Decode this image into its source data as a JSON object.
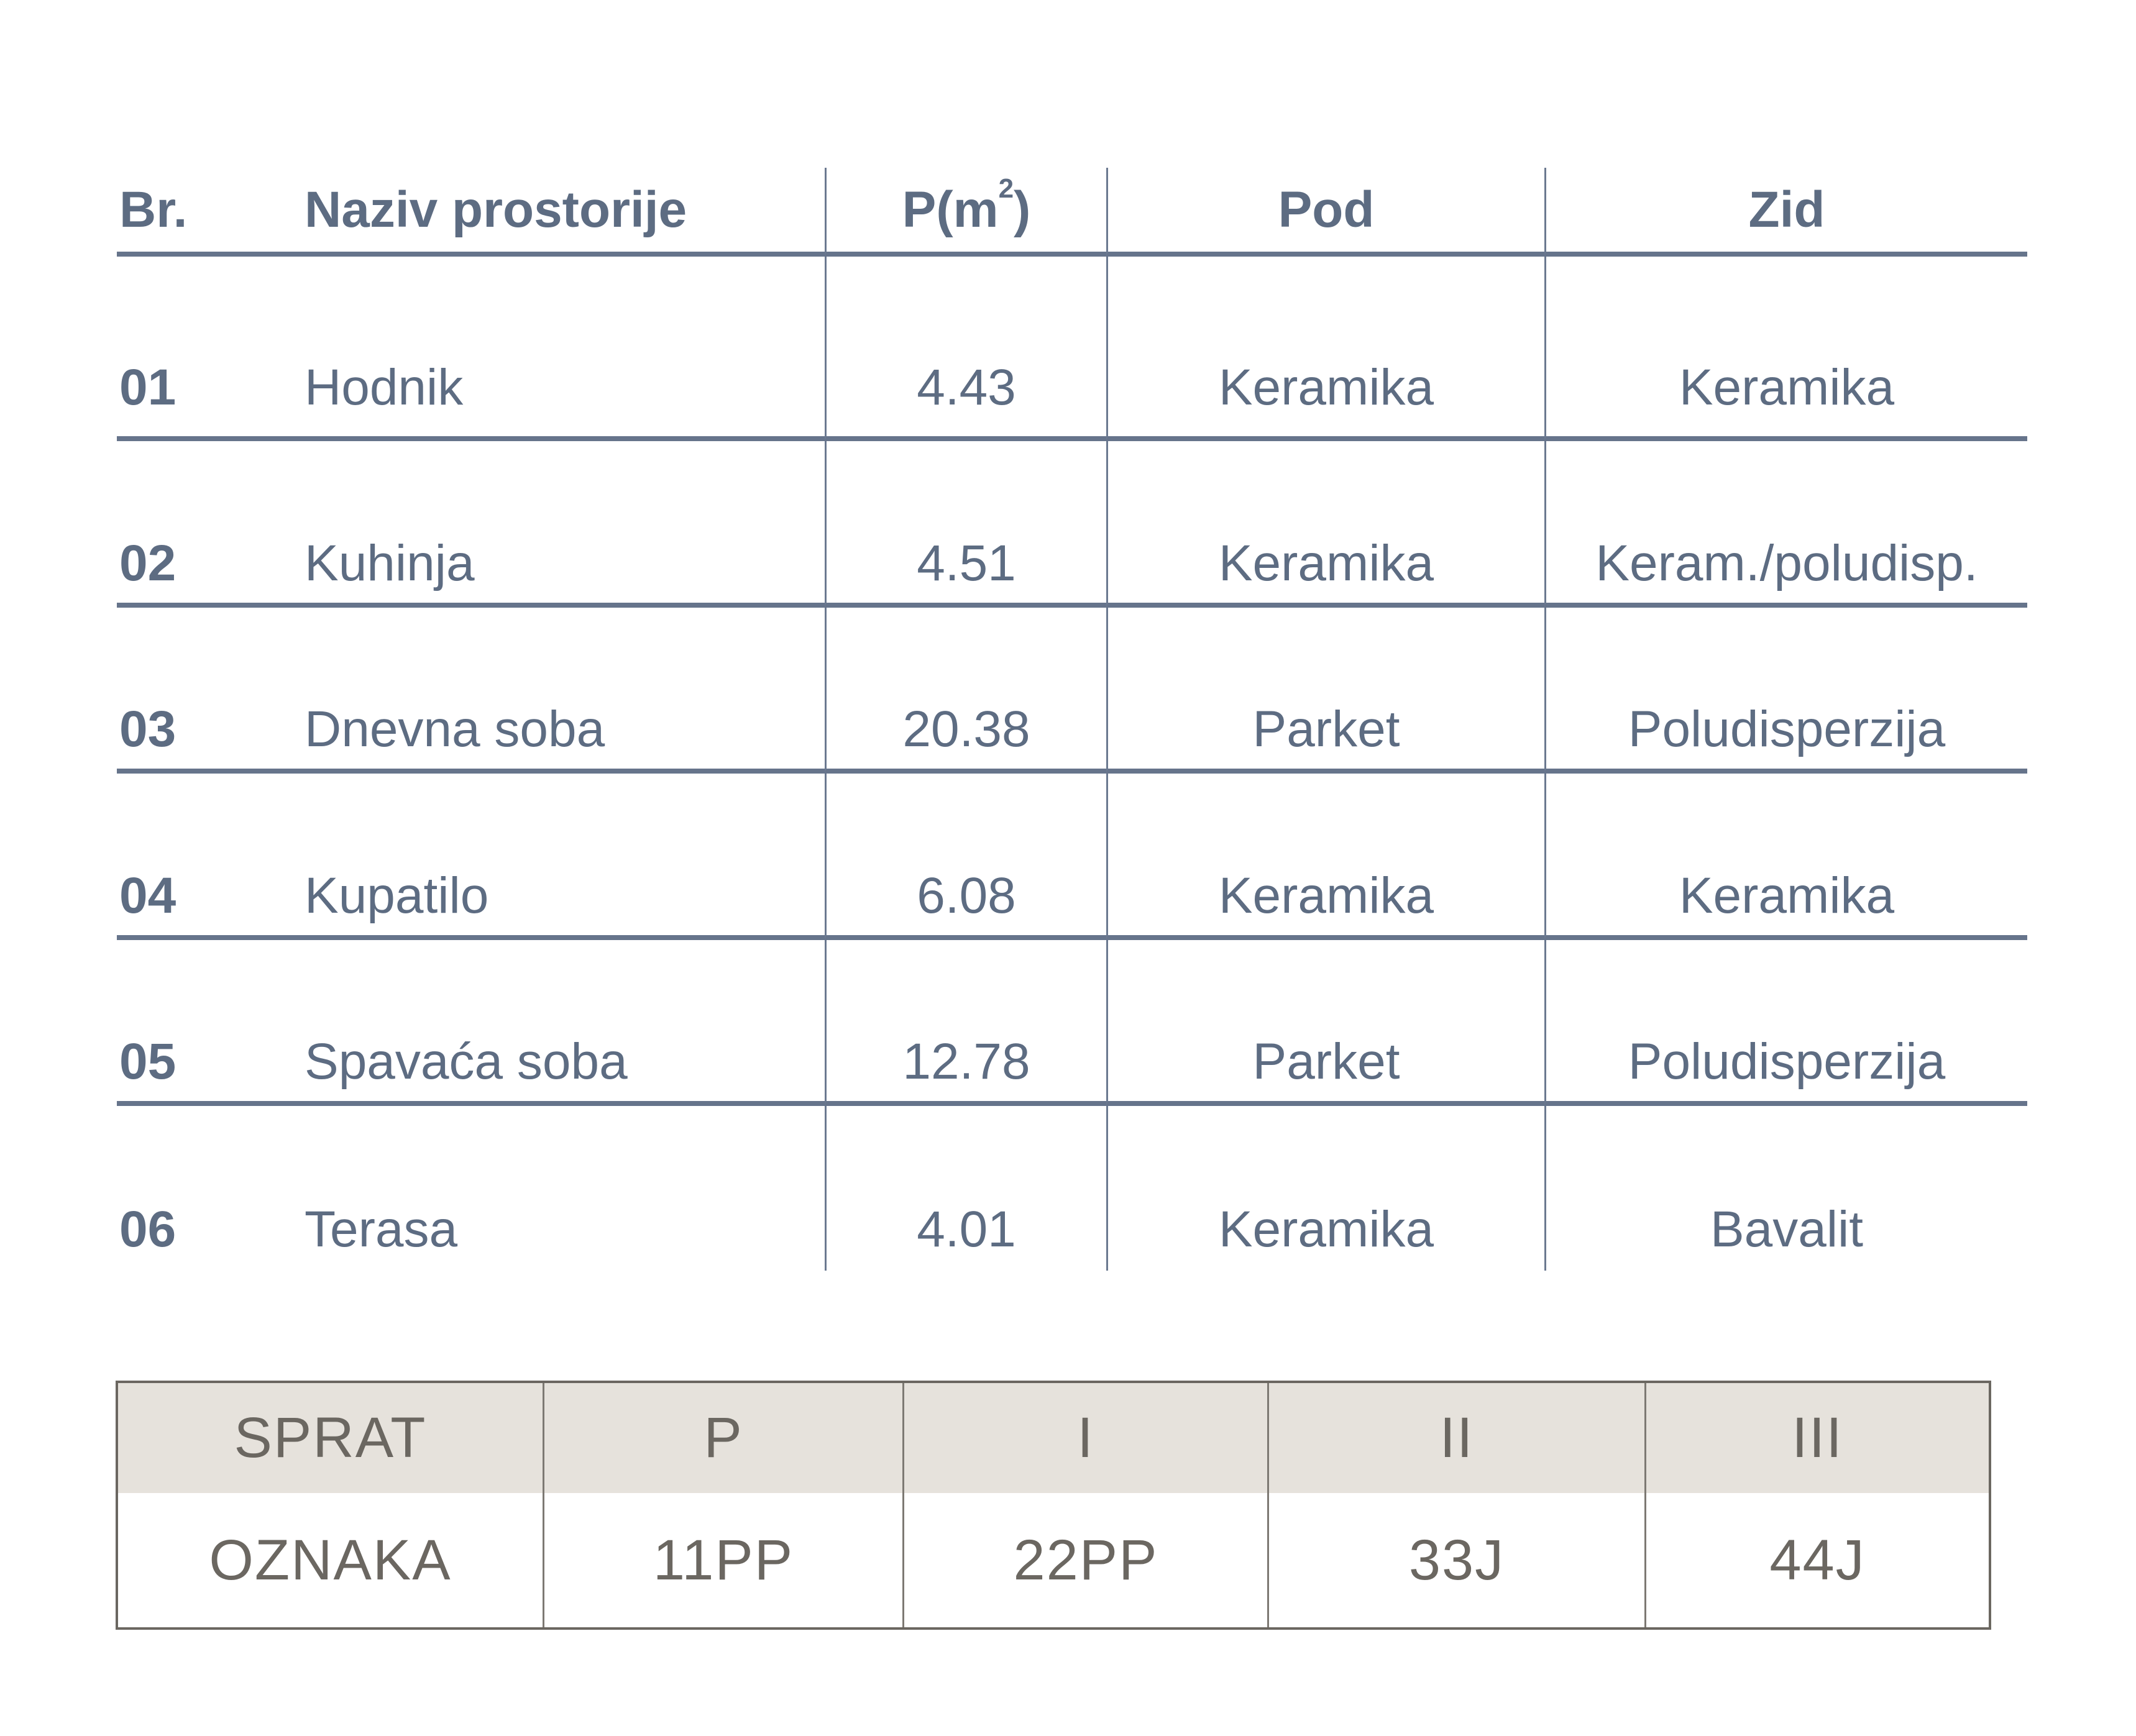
{
  "colors": {
    "table_text": "#5d6c82",
    "table_line": "#66748b",
    "table_line_thin": "#6b7990",
    "footer_text": "#6b6761",
    "footer_border": "#6b6761",
    "footer_line": "#7d7973",
    "footer_header_bg": "#e6e2dc"
  },
  "room_table": {
    "headers": {
      "num": "Br.",
      "name": "Naziv prostorije",
      "area_pre": "P(m",
      "area_sup": "2",
      "area_post": ")",
      "floor": "Pod",
      "wall": "Zid"
    },
    "rows": [
      {
        "num": "01",
        "name": "Hodnik",
        "area": "4.43",
        "floor": "Keramika",
        "wall": "Keramika"
      },
      {
        "num": "02",
        "name": "Kuhinja",
        "area": "4.51",
        "floor": "Keramika",
        "wall": "Keram./poludisp."
      },
      {
        "num": "03",
        "name": "Dnevna soba",
        "area": "20.38",
        "floor": "Parket",
        "wall": "Poludisperzija"
      },
      {
        "num": "04",
        "name": "Kupatilo",
        "area": "6.08",
        "floor": "Keramika",
        "wall": "Keramika"
      },
      {
        "num": "05",
        "name": "Spavaća soba",
        "area": "12.78",
        "floor": "Parket",
        "wall": "Poludisperzija"
      },
      {
        "num": "06",
        "name": "Terasa",
        "area": "4.01",
        "floor": "Keramika",
        "wall": "Bavalit"
      }
    ]
  },
  "floor_table": {
    "header_label": "SPRAT",
    "data_label": "OZNAKA",
    "floors": [
      "P",
      "I",
      "II",
      "III"
    ],
    "codes": [
      "11PP",
      "22PP",
      "33J",
      "44J"
    ]
  }
}
